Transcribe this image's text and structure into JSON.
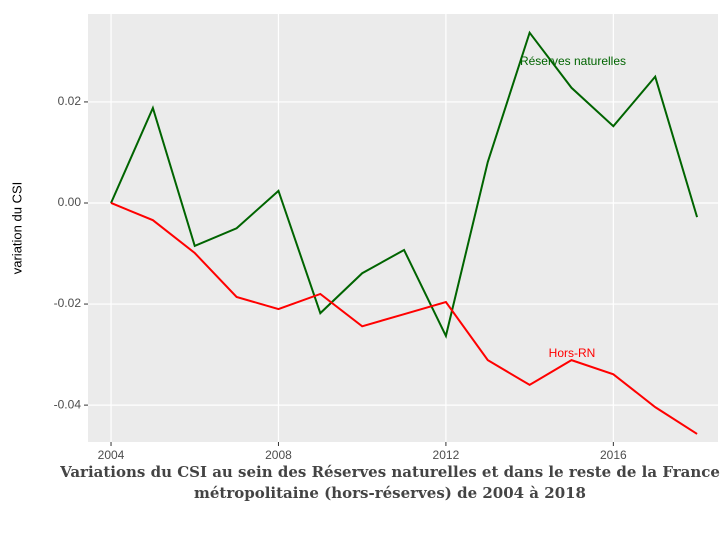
{
  "chart_data": {
    "type": "line",
    "y_label": "variation du CSI",
    "caption": "Variations du CSI au sein des Réserves naturelles et dans le reste de la France métropolitaine (hors-réserves) de 2004 à 2018",
    "x": [
      2004,
      2005,
      2006,
      2007,
      2008,
      2009,
      2010,
      2011,
      2012,
      2013,
      2014,
      2015,
      2016,
      2017,
      2018
    ],
    "series": [
      {
        "name": "Réserves naturelles",
        "color": "#006400",
        "values": [
          0,
          0.0188,
          -0.0085,
          -0.005,
          0.0024,
          -0.0218,
          -0.0139,
          -0.0093,
          -0.0263,
          0.0081,
          0.0337,
          0.0228,
          0.0152,
          0.025,
          -0.0028
        ]
      },
      {
        "name": "Hors-RN",
        "color": "#ff0000",
        "values": [
          0,
          -0.0034,
          -0.0099,
          -0.0186,
          -0.021,
          -0.018,
          -0.0244,
          -0.022,
          -0.0196,
          -0.0311,
          -0.036,
          -0.0311,
          -0.0339,
          -0.0404,
          -0.0457
        ]
      }
    ],
    "xlim": [
      2003.45,
      2018.5
    ],
    "ylim": [
      -0.0473,
      0.0374
    ],
    "xticks": [
      2004,
      2008,
      2012,
      2016
    ],
    "yticks": [
      0.02,
      {
        "value": 0,
        "label": "0.00"
      },
      -0.02,
      -0.04
    ],
    "grid": true
  }
}
